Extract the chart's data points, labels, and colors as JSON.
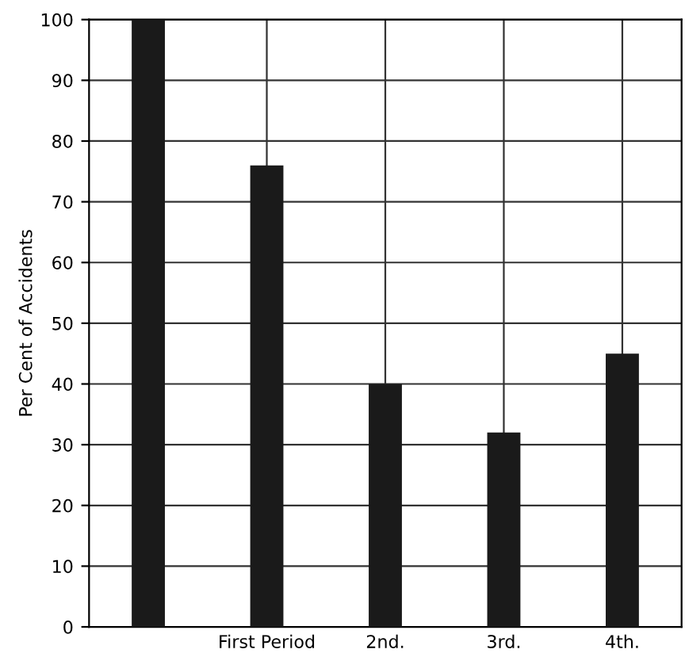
{
  "chart_data": {
    "type": "bar",
    "ylabel": "Per Cent of Accidents",
    "categories": [
      null,
      "First Period",
      "2nd.",
      "3rd.",
      "4th."
    ],
    "values": [
      100,
      76,
      40,
      32,
      45
    ],
    "color": "#1a1a1a",
    "ylim": [
      0,
      100
    ],
    "yticks": [
      0,
      10,
      20,
      30,
      40,
      50,
      60,
      70,
      80,
      90,
      100
    ],
    "grid": true
  }
}
